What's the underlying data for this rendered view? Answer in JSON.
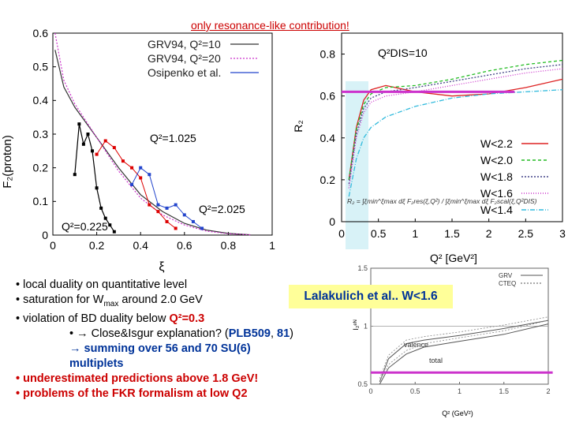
{
  "title": "only resonance-like contribution!",
  "colors": {
    "title": "#cc0000",
    "magenta_line": "#cc33cc",
    "callout_bg": "#ffff99",
    "callout_text": "#003399"
  },
  "chart_data": [
    {
      "type": "line",
      "name": "F2 proton vs xi",
      "xlabel": "ξ",
      "ylabel": "F₂(proton)",
      "xlim": [
        0,
        1
      ],
      "ylim": [
        0,
        0.6
      ],
      "xticks": [
        "0",
        "0.2",
        "0.4",
        "0.6",
        "0.8",
        "1"
      ],
      "yticks": [
        "0",
        "0.1",
        "0.2",
        "0.3",
        "0.4",
        "0.5",
        "0.6"
      ],
      "legend": [
        "GRV94, Q²=10",
        "GRV94, Q²=20",
        "Osipenko et al."
      ],
      "annotations": [
        "Q²=1.025",
        "Q²=2.025",
        "Q²=0.225"
      ],
      "series": [
        {
          "name": "GRV94, Q²=10",
          "x": [
            0.01,
            0.05,
            0.1,
            0.2,
            0.3,
            0.4,
            0.5,
            0.6,
            0.7,
            0.8,
            0.9
          ],
          "y": [
            0.55,
            0.44,
            0.38,
            0.29,
            0.2,
            0.12,
            0.07,
            0.035,
            0.015,
            0.005,
            0.001
          ]
        },
        {
          "name": "GRV94, Q²=20",
          "x": [
            0.01,
            0.05,
            0.1,
            0.2,
            0.3,
            0.4,
            0.5,
            0.6,
            0.7,
            0.8,
            0.9
          ],
          "y": [
            0.6,
            0.46,
            0.39,
            0.29,
            0.19,
            0.11,
            0.06,
            0.03,
            0.012,
            0.004,
            0.001
          ]
        },
        {
          "name": "Q²=0.225 resonance",
          "x": [
            0.1,
            0.12,
            0.14,
            0.16,
            0.18,
            0.2,
            0.22,
            0.24,
            0.26,
            0.28
          ],
          "y": [
            0.18,
            0.33,
            0.27,
            0.3,
            0.25,
            0.14,
            0.08,
            0.05,
            0.03,
            0.01
          ]
        },
        {
          "name": "Q²=1.025 resonance",
          "x": [
            0.2,
            0.24,
            0.28,
            0.32,
            0.36,
            0.4,
            0.44,
            0.48,
            0.52,
            0.56
          ],
          "y": [
            0.24,
            0.28,
            0.26,
            0.22,
            0.2,
            0.17,
            0.09,
            0.07,
            0.04,
            0.02
          ]
        },
        {
          "name": "Q²=2.025 resonance",
          "x": [
            0.36,
            0.4,
            0.44,
            0.48,
            0.52,
            0.56,
            0.6,
            0.64,
            0.68
          ],
          "y": [
            0.15,
            0.2,
            0.18,
            0.09,
            0.08,
            0.09,
            0.06,
            0.04,
            0.02
          ]
        }
      ]
    },
    {
      "type": "line",
      "name": "R2 vs Q2",
      "xlabel": "Q² [GeV²]",
      "ylabel": "R₂",
      "xlim": [
        0,
        3
      ],
      "ylim": [
        0,
        0.9
      ],
      "xticks": [
        "0",
        "0.5",
        "1",
        "1.5",
        "2",
        "2.5",
        "3"
      ],
      "yticks": [
        "0",
        "0.2",
        "0.4",
        "0.6",
        "0.8"
      ],
      "inset_label": "Q²DIS=10",
      "legend": [
        "W<2.2",
        "W<2.0",
        "W<1.8",
        "W<1.6",
        "W<1.4"
      ],
      "formula": "R₂ = ∫ξmin^ξmax dξ F₂res(ξ,Q²) / ∫ξmin^ξmax dξ F₂scal(ξ,Q²DIS)",
      "reference_line": 0.62,
      "series": [
        {
          "name": "W<2.2",
          "x": [
            0.1,
            0.2,
            0.3,
            0.4,
            0.6,
            1.0,
            1.5,
            2.0,
            2.5,
            3.0
          ],
          "y": [
            0.2,
            0.45,
            0.58,
            0.63,
            0.65,
            0.62,
            0.6,
            0.61,
            0.64,
            0.68
          ]
        },
        {
          "name": "W<2.0",
          "x": [
            0.1,
            0.2,
            0.3,
            0.4,
            0.6,
            1.0,
            1.5,
            2.0,
            2.5,
            3.0
          ],
          "y": [
            0.2,
            0.44,
            0.56,
            0.61,
            0.64,
            0.65,
            0.68,
            0.72,
            0.75,
            0.77
          ]
        },
        {
          "name": "W<1.8",
          "x": [
            0.1,
            0.2,
            0.3,
            0.4,
            0.6,
            1.0,
            1.5,
            2.0,
            2.5,
            3.0
          ],
          "y": [
            0.18,
            0.42,
            0.54,
            0.59,
            0.62,
            0.64,
            0.67,
            0.7,
            0.73,
            0.75
          ]
        },
        {
          "name": "W<1.6",
          "x": [
            0.1,
            0.2,
            0.3,
            0.4,
            0.6,
            1.0,
            1.5,
            2.0,
            2.5,
            3.0
          ],
          "y": [
            0.16,
            0.4,
            0.52,
            0.57,
            0.6,
            0.62,
            0.65,
            0.68,
            0.71,
            0.73
          ]
        },
        {
          "name": "W<1.4",
          "x": [
            0.1,
            0.2,
            0.3,
            0.4,
            0.6,
            1.0,
            1.5,
            2.0,
            2.5,
            3.0
          ],
          "y": [
            0.12,
            0.3,
            0.4,
            0.45,
            0.5,
            0.55,
            0.59,
            0.61,
            0.62,
            0.63
          ]
        }
      ]
    },
    {
      "type": "line",
      "name": "I2 vs Q2 (Lalakulich)",
      "xlabel": "Q² (GeV²)",
      "ylabel": "I₂ᵉᴺ",
      "xlim": [
        0,
        2
      ],
      "ylim": [
        0.5,
        1.5
      ],
      "xticks": [
        "0",
        "0.5",
        "1",
        "1.5",
        "2"
      ],
      "yticks": [
        "0.5",
        "1",
        "1.5"
      ],
      "legend": [
        "GRV",
        "CTEQ"
      ],
      "curve_labels": [
        "valence",
        "total"
      ],
      "reference_line": 0.6,
      "series": [
        {
          "name": "valence",
          "x": [
            0.1,
            0.2,
            0.4,
            0.6,
            1.0,
            1.5,
            2.0
          ],
          "y": [
            0.52,
            0.72,
            0.85,
            0.88,
            0.92,
            0.98,
            1.05
          ]
        },
        {
          "name": "total",
          "x": [
            0.1,
            0.2,
            0.4,
            0.6,
            1.0,
            1.5,
            2.0
          ],
          "y": [
            0.5,
            0.64,
            0.76,
            0.82,
            0.87,
            0.93,
            1.02
          ]
        }
      ]
    }
  ],
  "notes": {
    "line1": "• local duality on quantitative level",
    "line2_pre": "• saturation for W",
    "line2_sub": "max",
    "line2_post": " around 2.0 GeV",
    "line3_pre": "• violation of BD duality below ",
    "line3_q": "Q²=0.3",
    "line4_pre": "• ",
    "line4_arrow": "→",
    "line4_mid": " Close&Isgur explanation? (",
    "line4_ref": "PLB509",
    "line4_comma": ", ",
    "line4_num": "81",
    "line4_end": ")",
    "line5": "→ summing over 56 and 70 SU(6)",
    "line6": "multiplets",
    "line7": "• underestimated predictions above 1.8 GeV!",
    "line8": "• problems of the FKR formalism at low Q2"
  },
  "callout": "Lalakulich et al.. W<1.6"
}
